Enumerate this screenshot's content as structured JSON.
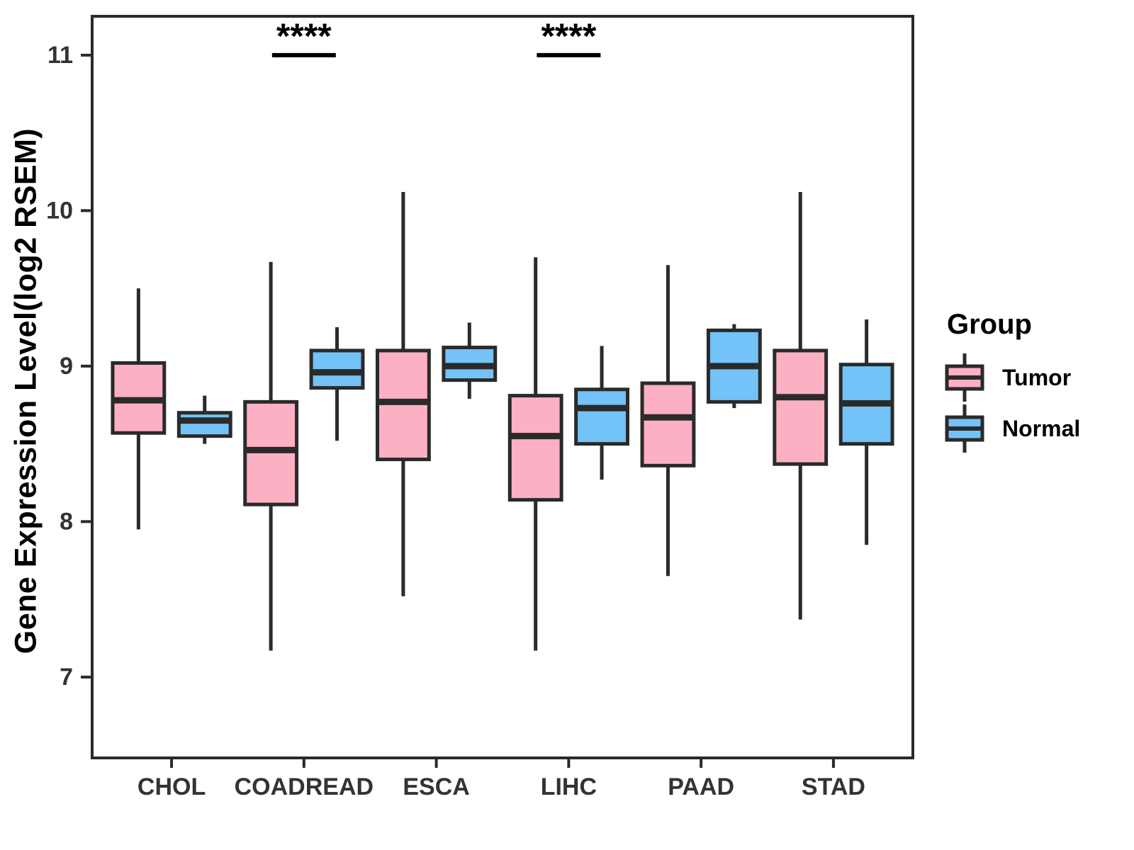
{
  "chart_data": {
    "type": "boxplot",
    "title": "",
    "xlabel": "",
    "ylabel": "Gene Expression Level(log2 RSEM)",
    "ylim": [
      6.48,
      11.25
    ],
    "yticks": [
      7,
      8,
      9,
      10,
      11
    ],
    "grid": false,
    "categories": [
      "CHOL",
      "COADREAD",
      "ESCA",
      "LIHC",
      "PAAD",
      "STAD"
    ],
    "legend": {
      "title": "Group",
      "position": "right"
    },
    "colors": {
      "tumor_fill": "#FBB0C4",
      "normal_fill": "#73C2F8",
      "stroke": "#2A2A2A",
      "tick_label": "#333333",
      "annotation": "#000000"
    },
    "series": [
      {
        "name": "Tumor",
        "fill": "#FBB0C4",
        "boxes": [
          {
            "category": "CHOL",
            "low": 7.95,
            "q1": 8.57,
            "median": 8.78,
            "q3": 9.02,
            "high": 9.5
          },
          {
            "category": "COADREAD",
            "low": 7.17,
            "q1": 8.11,
            "median": 8.46,
            "q3": 8.77,
            "high": 9.67
          },
          {
            "category": "ESCA",
            "low": 7.52,
            "q1": 8.4,
            "median": 8.77,
            "q3": 9.1,
            "high": 10.12
          },
          {
            "category": "LIHC",
            "low": 7.17,
            "q1": 8.14,
            "median": 8.55,
            "q3": 8.81,
            "high": 9.7
          },
          {
            "category": "PAAD",
            "low": 7.65,
            "q1": 8.36,
            "median": 8.67,
            "q3": 8.89,
            "high": 9.65
          },
          {
            "category": "STAD",
            "low": 7.37,
            "q1": 8.37,
            "median": 8.8,
            "q3": 9.1,
            "high": 10.12
          }
        ]
      },
      {
        "name": "Normal",
        "fill": "#73C2F8",
        "boxes": [
          {
            "category": "CHOL",
            "low": 8.5,
            "q1": 8.55,
            "median": 8.65,
            "q3": 8.7,
            "high": 8.81
          },
          {
            "category": "COADREAD",
            "low": 8.52,
            "q1": 8.86,
            "median": 8.96,
            "q3": 9.1,
            "high": 9.25
          },
          {
            "category": "ESCA",
            "low": 8.79,
            "q1": 8.91,
            "median": 9.0,
            "q3": 9.12,
            "high": 9.28
          },
          {
            "category": "LIHC",
            "low": 8.27,
            "q1": 8.5,
            "median": 8.73,
            "q3": 8.85,
            "high": 9.13
          },
          {
            "category": "PAAD",
            "low": 8.73,
            "q1": 8.77,
            "median": 9.0,
            "q3": 9.23,
            "high": 9.27
          },
          {
            "category": "STAD",
            "low": 7.85,
            "q1": 8.5,
            "median": 8.76,
            "q3": 9.01,
            "high": 9.3
          }
        ]
      }
    ],
    "annotations": [
      {
        "category": "COADREAD",
        "label": "****",
        "y": 11
      },
      {
        "category": "LIHC",
        "label": "****",
        "y": 11
      }
    ]
  }
}
